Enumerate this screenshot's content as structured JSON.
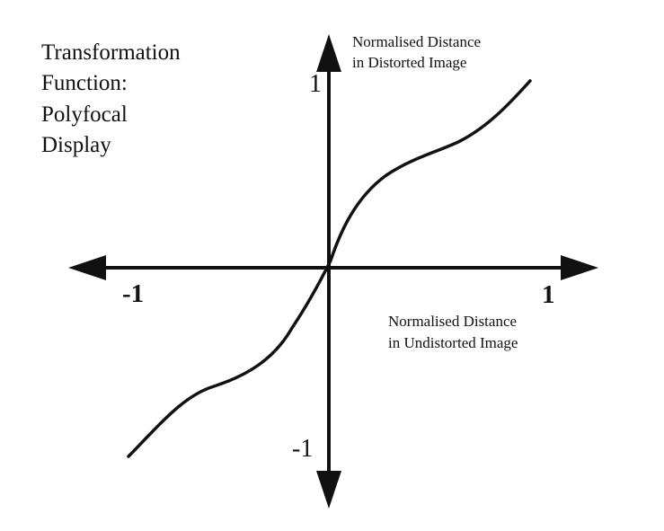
{
  "figure": {
    "title_lines": [
      "Transformation",
      "Function:",
      "Polyfocal",
      "Display"
    ]
  },
  "y_axis": {
    "label_lines": [
      "Normalised Distance",
      "in Distorted Image"
    ],
    "tick_top": "1",
    "tick_bottom": "-1"
  },
  "x_axis": {
    "label_lines": [
      "Normalised Distance",
      "in Undistorted Image"
    ],
    "tick_left": "-1",
    "tick_right": "1"
  },
  "colors": {
    "ink": "#111111",
    "background": "#ffffff"
  }
}
